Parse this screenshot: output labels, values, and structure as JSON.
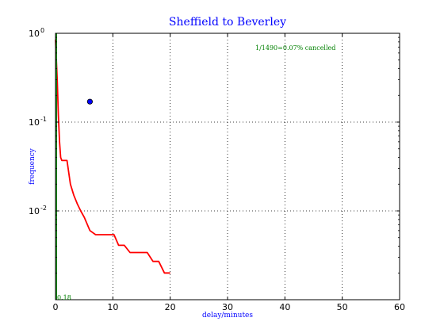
{
  "chart_data": {
    "type": "line",
    "title": "Sheffield to Beverley",
    "xlabel": "delay/minutes",
    "ylabel": "frequency",
    "xlim": [
      0,
      60
    ],
    "x_ticks": [
      0,
      10,
      20,
      30,
      40,
      50,
      60
    ],
    "ylim_log10": [
      -3,
      0
    ],
    "y_scale": "log",
    "y_ticks": [
      {
        "base": "10",
        "exp": "0"
      },
      {
        "base": "10",
        "exp": "-1"
      },
      {
        "base": "10",
        "exp": "-2"
      }
    ],
    "grid": true,
    "annotation": "1/1490=0.07% cancelled",
    "low_label": "0.18",
    "colors": {
      "title": "#0000ff",
      "labels": "#0000ff",
      "series": "#ff0000",
      "green": "#008000",
      "marker": "#0000ff"
    },
    "series": [
      {
        "style": "line",
        "color": "#ff0000",
        "x": [
          0,
          0.1,
          0.3,
          0.5,
          0.7,
          0.9,
          1.1,
          2,
          2.6,
          3.2,
          3.8,
          4.4,
          5.0,
          6.0,
          7.0,
          8.0,
          9.0,
          10.2,
          11.0,
          12.0,
          13.0,
          14.0,
          15.0,
          16.0,
          17.0,
          18.0,
          19.0,
          20.0
        ],
        "y": [
          0.85,
          0.6,
          0.3,
          0.12,
          0.06,
          0.04,
          0.037,
          0.037,
          0.02,
          0.015,
          0.012,
          0.01,
          0.0085,
          0.006,
          0.0054,
          0.0054,
          0.0054,
          0.0054,
          0.0041,
          0.0041,
          0.0034,
          0.0034,
          0.0034,
          0.0034,
          0.0027,
          0.0027,
          0.002,
          0.002
        ]
      },
      {
        "style": "vertical-line",
        "color": "#008000",
        "x": [
          0.18,
          0.18
        ],
        "y": [
          1.0,
          0.001
        ]
      },
      {
        "style": "point",
        "color": "#0000ff",
        "x": [
          6.0
        ],
        "y": [
          0.17
        ]
      }
    ]
  }
}
